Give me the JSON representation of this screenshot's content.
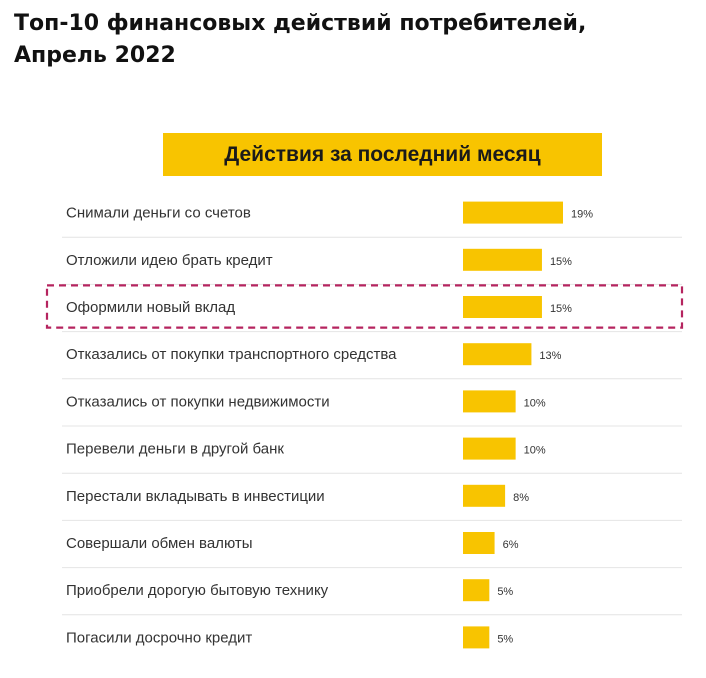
{
  "page_title": {
    "line1": "Топ-10 финансовых действий потребителей,",
    "line2": "Апрель 2022"
  },
  "chart_data": {
    "type": "bar",
    "orientation": "horizontal",
    "title": "Действия за последний месяц",
    "categories": [
      "Снимали деньги со счетов",
      "Отложили идею брать кредит",
      "Оформили новый вклад",
      "Отказались от покупки транспортного средства",
      "Отказались от покупки недвижимости",
      "Перевели деньги в другой банк",
      "Перестали вкладывать в инвестиции",
      "Совершали обмен валюты",
      "Приобрели дорогую бытовую технику",
      "Погасили досрочно кредит"
    ],
    "values": [
      19,
      15,
      15,
      13,
      10,
      10,
      8,
      6,
      5,
      5
    ],
    "value_labels": [
      "19%",
      "15%",
      "15%",
      "13%",
      "10%",
      "10%",
      "8%",
      "6%",
      "5%",
      "5%"
    ],
    "unit": "%",
    "highlighted_category": "Оформили новый вклад",
    "bar_color": "#f8c400",
    "highlight_color": "#b5245f",
    "xlim": [
      0,
      19
    ],
    "grid": false,
    "legend": "none"
  }
}
